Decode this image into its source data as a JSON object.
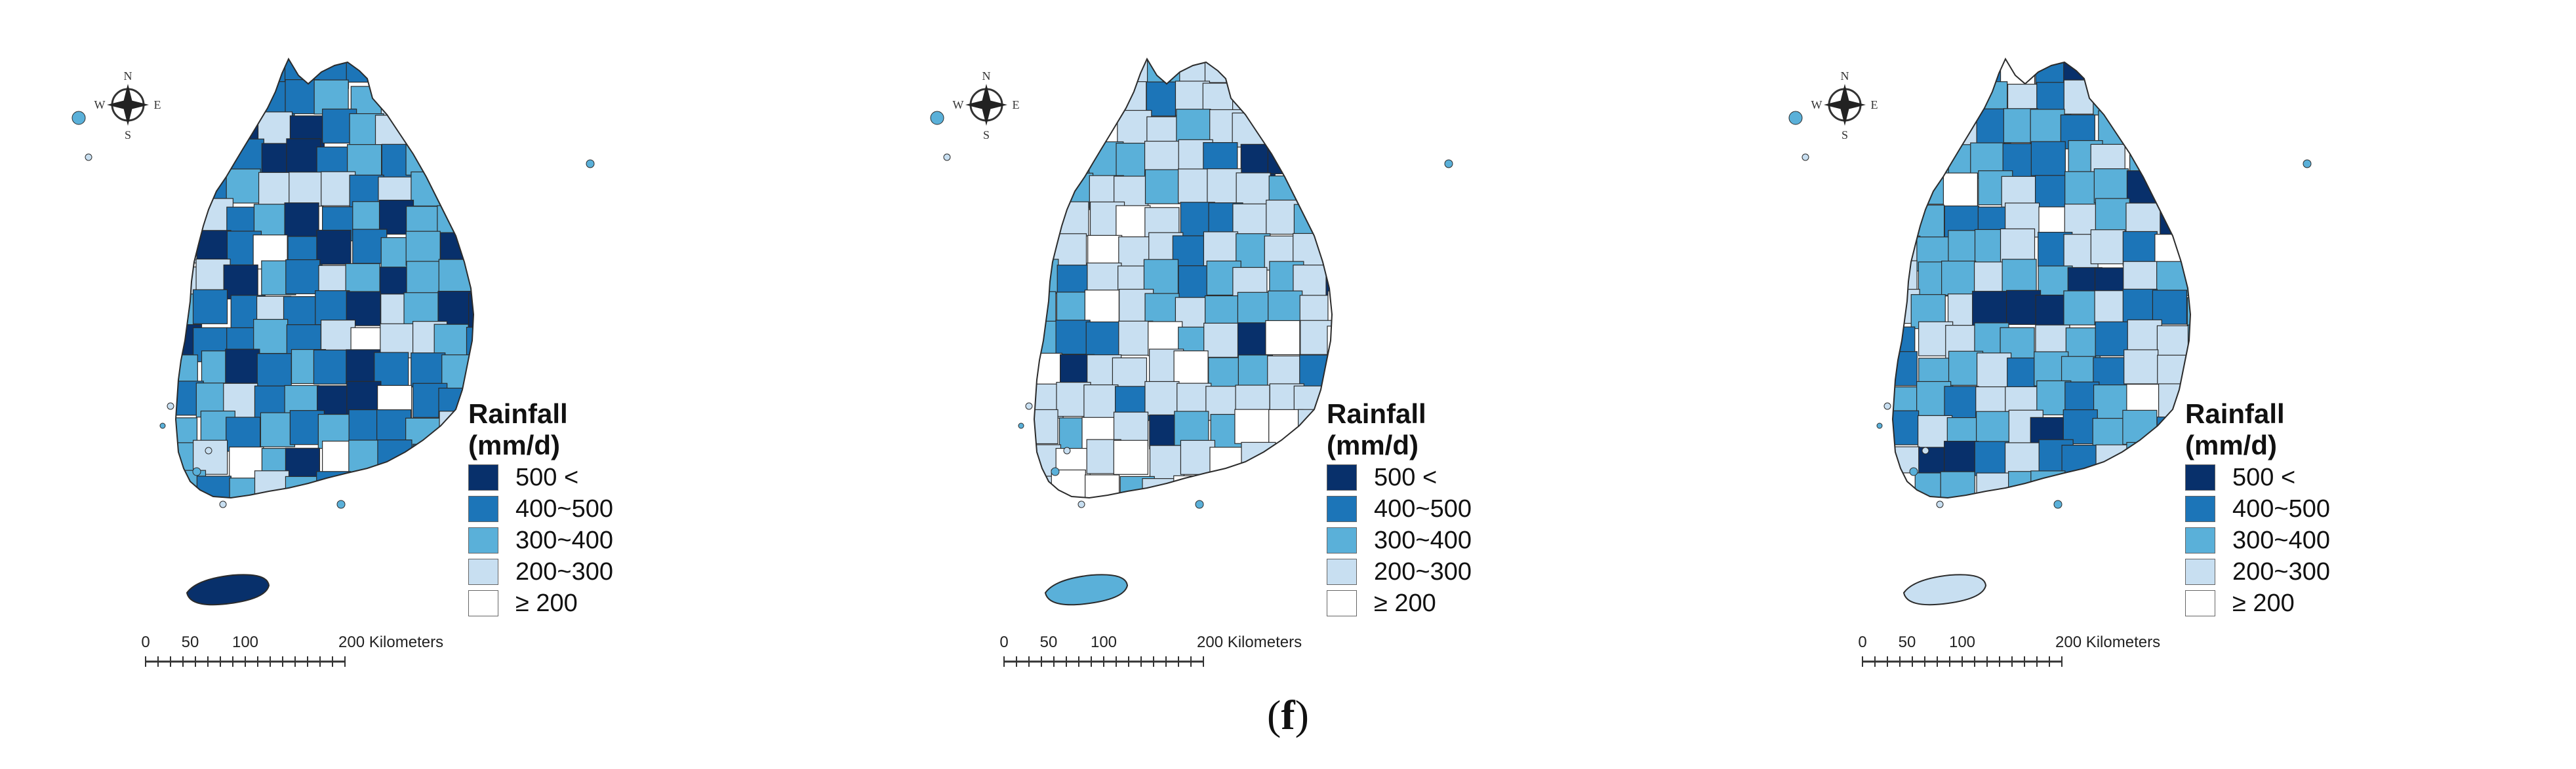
{
  "figure": {
    "caption_open": "(",
    "caption_letter": "f",
    "caption_close": ")"
  },
  "colors": {
    "c500_plus": "#08306b",
    "c400_500": "#1c75b8",
    "c300_400": "#5ab0d9",
    "c200_300": "#c8dff1",
    "c_le_200": "#ffffff",
    "border": "#2b2b2b"
  },
  "compass": {
    "n": "N",
    "s": "S",
    "e": "E",
    "w": "W"
  },
  "scalebar": {
    "ticks": [
      "0",
      "50",
      "100",
      "200 Kilometers"
    ]
  },
  "legend": {
    "title_line1": "Rainfall",
    "title_line2": "(mm/d)",
    "classes": [
      {
        "label": "500 <",
        "color": "#08306b"
      },
      {
        "label": "400~500",
        "color": "#1c75b8"
      },
      {
        "label": "300~400",
        "color": "#5ab0d9"
      },
      {
        "label": "200~300",
        "color": "#c8dff1"
      },
      {
        "label": "≥ 200",
        "color": "#ffffff"
      }
    ]
  },
  "maps": [
    {
      "id": "map-1",
      "jeju_class": 0,
      "dominant": "dark"
    },
    {
      "id": "map-2",
      "jeju_class": 2,
      "dominant": "light"
    },
    {
      "id": "map-3",
      "jeju_class": 3,
      "dominant": "medium"
    }
  ]
}
